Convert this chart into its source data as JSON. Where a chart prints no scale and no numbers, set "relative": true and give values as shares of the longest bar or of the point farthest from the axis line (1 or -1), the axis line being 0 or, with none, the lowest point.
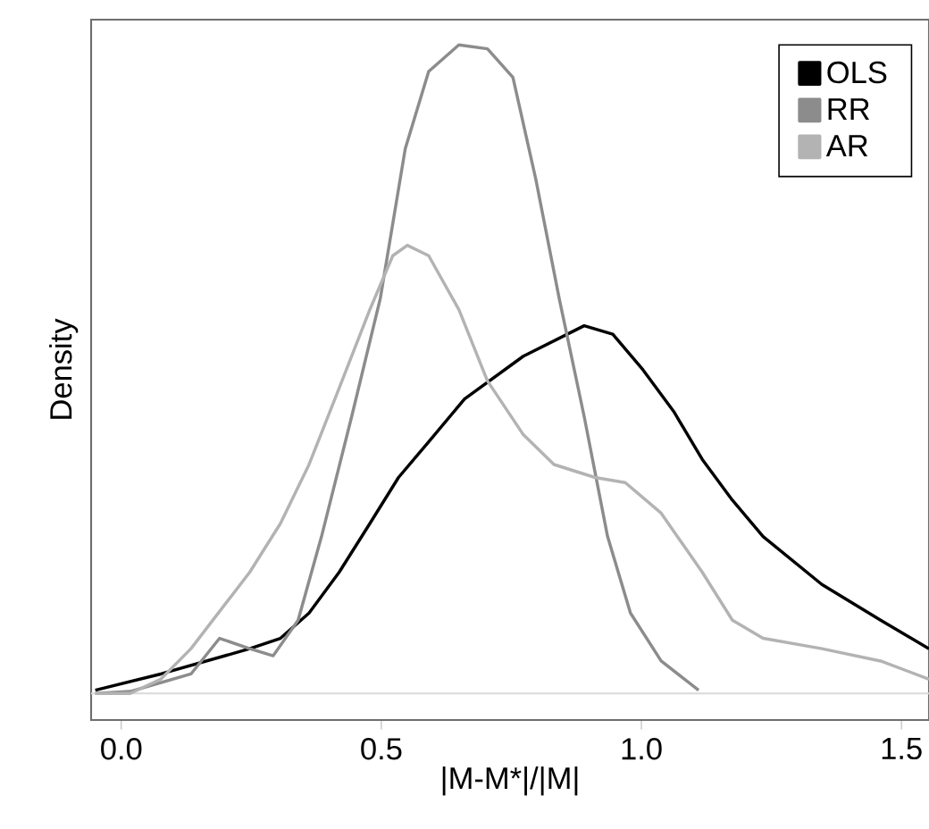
{
  "chart_data": {
    "type": "line",
    "xlabel": "|M-M*|/|M|",
    "ylabel": "Density",
    "relative": true,
    "xlim": [
      -0.058,
      1.553
    ],
    "xticks": [
      {
        "value": 0,
        "label": "0.0"
      },
      {
        "value": 0.5,
        "label": "0.5"
      },
      {
        "value": 1,
        "label": "1.0"
      },
      {
        "value": 1.5,
        "label": "1.5"
      }
    ],
    "legend": "top right",
    "marker": "none",
    "line_style": "solid",
    "grid": false,
    "ref_lines": [
      {
        "axis": "y",
        "value": 0,
        "color": "#d9d9d9"
      }
    ],
    "series": [
      {
        "name": "OLS",
        "color": "#000000",
        "x": [
          -0.05,
          0.076,
          0.247,
          0.306,
          0.361,
          0.419,
          0.478,
          0.533,
          0.591,
          0.66,
          0.773,
          0.89,
          0.945,
          1.003,
          1.062,
          1.117,
          1.175,
          1.234,
          1.347,
          1.46,
          1.553
        ],
        "values": [
          0.005,
          0.03,
          0.069,
          0.085,
          0.124,
          0.187,
          0.262,
          0.333,
          0.388,
          0.454,
          0.52,
          0.567,
          0.554,
          0.499,
          0.435,
          0.361,
          0.298,
          0.242,
          0.168,
          0.113,
          0.069
        ]
      },
      {
        "name": "RR",
        "color": "#8c8c8c",
        "x": [
          -0.05,
          0.017,
          0.134,
          0.189,
          0.247,
          0.292,
          0.34,
          0.385,
          0.443,
          0.498,
          0.546,
          0.591,
          0.649,
          0.704,
          0.753,
          0.797,
          0.842,
          0.89,
          0.935,
          0.979,
          1.038,
          1.11
        ],
        "values": [
          0.0,
          0.003,
          0.03,
          0.085,
          0.069,
          0.058,
          0.113,
          0.242,
          0.427,
          0.609,
          0.84,
          0.959,
          1.0,
          0.994,
          0.95,
          0.793,
          0.609,
          0.427,
          0.242,
          0.124,
          0.05,
          0.005
        ]
      },
      {
        "name": "AR",
        "color": "#b3b3b3",
        "x": [
          -0.05,
          0.017,
          0.076,
          0.134,
          0.247,
          0.306,
          0.361,
          0.419,
          0.478,
          0.522,
          0.55,
          0.591,
          0.649,
          0.704,
          0.773,
          0.832,
          0.911,
          0.969,
          1.038,
          1.117,
          1.175,
          1.234,
          1.347,
          1.46,
          1.553
        ],
        "values": [
          0.0,
          0.0,
          0.022,
          0.069,
          0.187,
          0.262,
          0.353,
          0.471,
          0.592,
          0.675,
          0.691,
          0.675,
          0.592,
          0.482,
          0.399,
          0.353,
          0.333,
          0.325,
          0.278,
          0.187,
          0.113,
          0.085,
          0.069,
          0.05,
          0.022
        ]
      }
    ]
  }
}
